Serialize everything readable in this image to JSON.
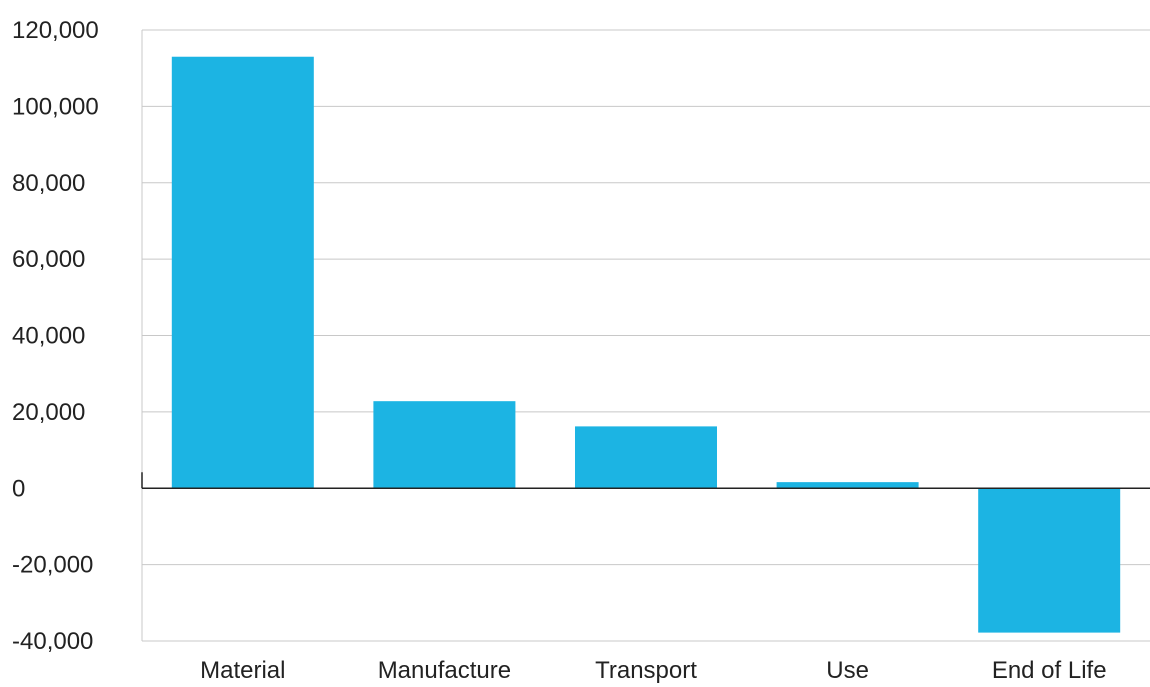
{
  "chart_data": {
    "type": "bar",
    "title": "",
    "xlabel": "",
    "ylabel": "",
    "categories": [
      "Material",
      "Manufacture",
      "Transport",
      "Use",
      "End of Life"
    ],
    "values": [
      113000,
      22800,
      16200,
      1600,
      -37800
    ],
    "ylim": [
      -40000,
      120000
    ],
    "yticks": [
      120000,
      100000,
      80000,
      60000,
      40000,
      20000,
      0,
      -20000,
      -40000
    ],
    "ytick_labels": [
      "120,000",
      "100,000",
      "80,000",
      "60,000",
      "40,000",
      "20,000",
      "0",
      "-20,000",
      "-40,000"
    ],
    "grid": true,
    "legend": "none",
    "colors": {
      "bar": "#1cb4e3",
      "grid": "#c8c8c8",
      "axis": "#222222"
    }
  }
}
